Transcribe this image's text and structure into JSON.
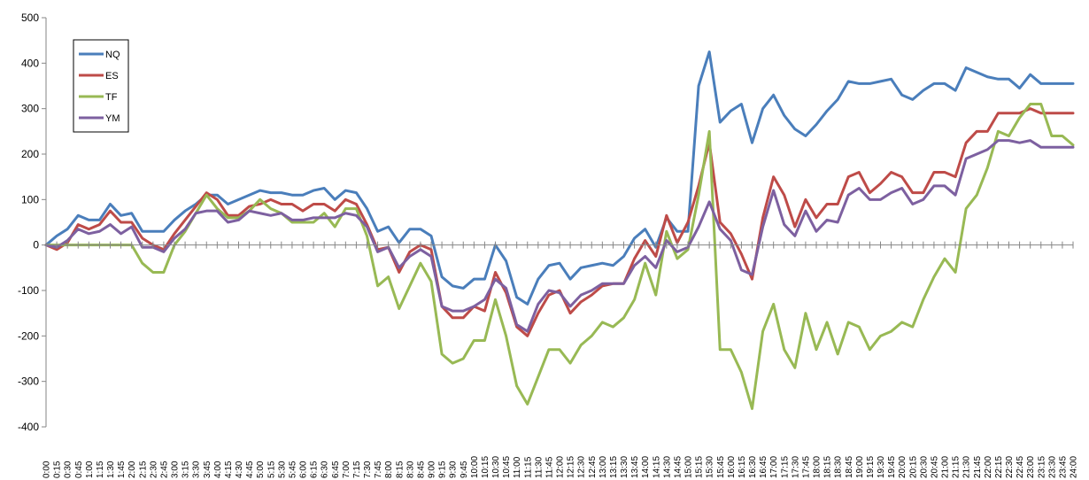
{
  "chart_data": {
    "type": "line",
    "title": "",
    "xlabel": "",
    "ylabel": "",
    "ylim": [
      -400,
      500
    ],
    "yticks": [
      -400,
      -300,
      -200,
      -100,
      0,
      100,
      200,
      300,
      400,
      500
    ],
    "grid": false,
    "legend": "top-left",
    "x": [
      "0:00",
      "0:15",
      "0:30",
      "0:45",
      "1:00",
      "1:15",
      "1:30",
      "1:45",
      "2:00",
      "2:15",
      "2:30",
      "2:45",
      "3:00",
      "3:15",
      "3:30",
      "3:45",
      "4:00",
      "4:15",
      "4:30",
      "4:45",
      "5:00",
      "5:15",
      "5:30",
      "5:45",
      "6:00",
      "6:15",
      "6:30",
      "6:45",
      "7:00",
      "7:15",
      "7:30",
      "7:45",
      "8:00",
      "8:15",
      "8:30",
      "8:45",
      "9:00",
      "9:15",
      "9:30",
      "9:45",
      "10:00",
      "10:15",
      "10:30",
      "10:45",
      "11:00",
      "11:15",
      "11:30",
      "11:45",
      "12:00",
      "12:15",
      "12:30",
      "12:45",
      "13:00",
      "13:15",
      "13:30",
      "13:45",
      "14:00",
      "14:15",
      "14:30",
      "14:45",
      "15:00",
      "15:15",
      "15:30",
      "15:45",
      "16:00",
      "16:15",
      "16:30",
      "16:45",
      "17:00",
      "17:15",
      "17:30",
      "17:45",
      "18:00",
      "18:15",
      "18:30",
      "18:45",
      "19:00",
      "19:15",
      "19:30",
      "19:45",
      "20:00",
      "20:15",
      "20:30",
      "20:45",
      "21:00",
      "21:15",
      "21:30",
      "21:45",
      "22:00",
      "22:15",
      "22:30",
      "22:45",
      "23:00",
      "23:15",
      "23:30",
      "23:45",
      "24:00"
    ],
    "series": [
      {
        "name": "NQ",
        "color": "#4a7ebb",
        "width": 3,
        "values": [
          0,
          20,
          35,
          65,
          55,
          55,
          90,
          65,
          70,
          30,
          30,
          30,
          55,
          75,
          90,
          110,
          110,
          90,
          100,
          110,
          120,
          115,
          115,
          110,
          110,
          120,
          125,
          100,
          120,
          115,
          80,
          30,
          40,
          5,
          35,
          35,
          20,
          -70,
          -90,
          -95,
          -75,
          -75,
          0,
          -35,
          -115,
          -130,
          -75,
          -45,
          -40,
          -75,
          -50,
          -45,
          -40,
          -45,
          -25,
          15,
          35,
          -5,
          60,
          30,
          30,
          350,
          425,
          270,
          295,
          310,
          225,
          300,
          330,
          285,
          255,
          240,
          265,
          295,
          320,
          360,
          355,
          355,
          360,
          365,
          330,
          320,
          340,
          355,
          355,
          340,
          390,
          380,
          370,
          365,
          365,
          345,
          375,
          355,
          355,
          355,
          355
        ]
      },
      {
        "name": "ES",
        "color": "#be4b48",
        "width": 3,
        "values": [
          0,
          -10,
          5,
          45,
          35,
          45,
          75,
          50,
          50,
          15,
          0,
          -10,
          25,
          55,
          85,
          115,
          100,
          65,
          65,
          85,
          90,
          100,
          90,
          90,
          75,
          90,
          90,
          75,
          100,
          90,
          45,
          -10,
          -5,
          -60,
          -15,
          0,
          -10,
          -135,
          -160,
          -160,
          -135,
          -145,
          -60,
          -105,
          -180,
          -200,
          -150,
          -110,
          -100,
          -150,
          -125,
          -110,
          -90,
          -85,
          -85,
          -30,
          10,
          -25,
          65,
          5,
          50,
          130,
          225,
          50,
          25,
          -20,
          -75,
          60,
          150,
          110,
          40,
          100,
          60,
          90,
          90,
          150,
          160,
          115,
          135,
          160,
          150,
          115,
          115,
          160,
          160,
          150,
          225,
          250,
          250,
          290,
          290,
          290,
          300,
          290,
          290,
          290,
          290
        ]
      },
      {
        "name": "TF",
        "color": "#98b954",
        "width": 3,
        "values": [
          0,
          0,
          0,
          0,
          0,
          0,
          0,
          0,
          0,
          -40,
          -60,
          -60,
          0,
          30,
          70,
          110,
          80,
          60,
          60,
          75,
          100,
          80,
          70,
          50,
          50,
          50,
          70,
          40,
          80,
          80,
          20,
          -90,
          -70,
          -140,
          -90,
          -40,
          -80,
          -240,
          -260,
          -250,
          -210,
          -210,
          -120,
          -200,
          -310,
          -350,
          -290,
          -230,
          -230,
          -260,
          -220,
          -200,
          -170,
          -180,
          -160,
          -120,
          -40,
          -110,
          30,
          -30,
          -10,
          110,
          250,
          -230,
          -230,
          -280,
          -360,
          -190,
          -130,
          -230,
          -270,
          -150,
          -230,
          -170,
          -240,
          -170,
          -180,
          -230,
          -200,
          -190,
          -170,
          -180,
          -120,
          -70,
          -30,
          -60,
          80,
          110,
          170,
          250,
          240,
          280,
          310,
          310,
          240,
          240,
          220
        ]
      },
      {
        "name": "YM",
        "color": "#7d60a0",
        "width": 3,
        "values": [
          0,
          -5,
          10,
          35,
          25,
          30,
          45,
          25,
          40,
          -5,
          -5,
          -15,
          15,
          35,
          70,
          75,
          75,
          50,
          55,
          75,
          70,
          65,
          70,
          55,
          55,
          60,
          60,
          60,
          70,
          65,
          40,
          -15,
          -5,
          -50,
          -25,
          -10,
          -25,
          -135,
          -145,
          -145,
          -135,
          -120,
          -75,
          -95,
          -175,
          -190,
          -130,
          -100,
          -105,
          -135,
          -110,
          -100,
          -85,
          -85,
          -85,
          -45,
          -25,
          -50,
          10,
          -15,
          -5,
          40,
          95,
          35,
          10,
          -55,
          -65,
          40,
          120,
          45,
          20,
          75,
          30,
          55,
          50,
          110,
          125,
          100,
          100,
          115,
          125,
          90,
          100,
          130,
          130,
          110,
          190,
          200,
          210,
          230,
          230,
          225,
          230,
          215,
          215,
          215,
          215
        ]
      }
    ]
  }
}
